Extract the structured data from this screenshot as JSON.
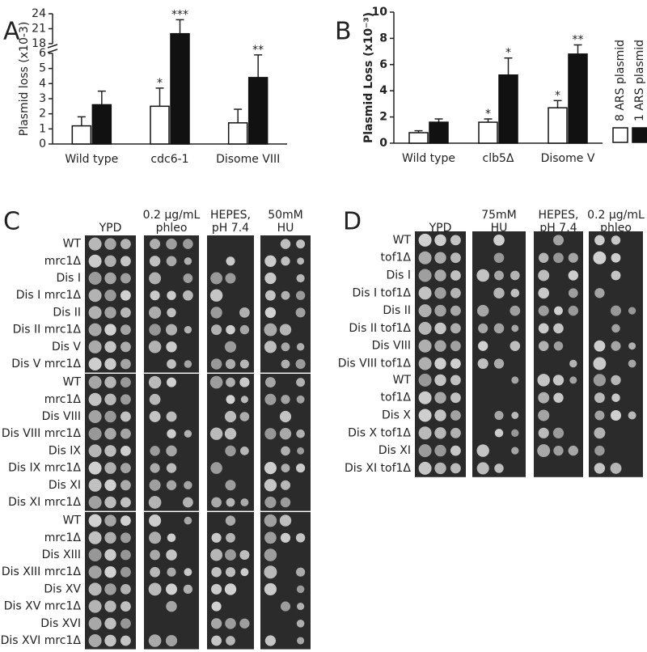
{
  "panel_labels": [
    "A",
    "B",
    "C",
    "D"
  ],
  "chart_data": [
    {
      "type": "bar",
      "y_label": "Plasmid loss (x10-3)",
      "categories": [
        "Wild type",
        "cdc6-1",
        "Disome VIII"
      ],
      "series": [
        {
          "color": "#ffffff",
          "values": [
            1.2,
            2.5,
            1.4
          ],
          "errors": [
            0.6,
            1.2,
            0.9
          ],
          "significance": [
            null,
            "*",
            null
          ]
        },
        {
          "color": "#111111",
          "values": [
            2.6,
            20,
            4.4
          ],
          "errors": [
            0.9,
            2.8,
            1.5
          ],
          "significance": [
            null,
            "***",
            "**"
          ]
        }
      ],
      "ylim": [
        0,
        24
      ],
      "yticks": [
        0,
        1,
        2,
        3,
        4,
        5,
        6,
        18,
        21,
        24
      ],
      "axis_break": [
        6,
        18
      ]
    },
    {
      "type": "bar",
      "y_label": "Plasmid Loss (x10⁻³)",
      "categories": [
        "Wild type",
        "clb5Δ",
        "Disome V"
      ],
      "series": [
        {
          "name": "8 ARS plasmid",
          "color": "#ffffff",
          "values": [
            0.8,
            1.6,
            2.7
          ],
          "errors": [
            0.15,
            0.25,
            0.55
          ],
          "significance": [
            null,
            "*",
            "*"
          ]
        },
        {
          "name": "1 ARS plasmid",
          "color": "#111111",
          "values": [
            1.6,
            5.2,
            6.8
          ],
          "errors": [
            0.25,
            1.3,
            0.7
          ],
          "significance": [
            null,
            "*",
            "**"
          ]
        }
      ],
      "ylim": [
        0,
        10
      ],
      "yticks": [
        0,
        2,
        4,
        6,
        8,
        10
      ],
      "legend": "right"
    }
  ],
  "spot_assays": [
    {
      "columns": [
        {
          "lines": [
            "YPD"
          ]
        },
        {
          "lines": [
            "0.2 µg/mL",
            "phleo"
          ]
        },
        {
          "lines": [
            "HEPES,",
            "pH 7.4"
          ]
        },
        {
          "lines": [
            "50mM",
            "HU"
          ]
        }
      ],
      "groups": [
        [
          "WT",
          "mrc1Δ",
          "Dis I",
          "Dis I mrc1Δ",
          "Dis II",
          "Dis II mrc1Δ",
          "Dis V",
          "Dis V mrc1Δ"
        ],
        [
          "WT",
          "mrc1Δ",
          "Dis VIII",
          "Dis VIII mrc1Δ",
          "Dis IX",
          "Dis IX mrc1Δ",
          "Dis XI",
          "Dis XI mrc1Δ"
        ],
        [
          "WT",
          "mrc1Δ",
          "Dis XIII",
          "Dis XIII mrc1Δ",
          "Dis XV",
          "Dis XV mrc1Δ",
          "Dis XVI",
          "Dis XVI mrc1Δ"
        ]
      ]
    },
    {
      "columns": [
        {
          "lines": [
            "YPD"
          ]
        },
        {
          "lines": [
            "75mM",
            "HU"
          ]
        },
        {
          "lines": [
            "HEPES,",
            "pH 7.4"
          ]
        },
        {
          "lines": [
            "0.2 µg/mL",
            "phleo"
          ]
        }
      ],
      "groups": [
        [
          "WT",
          "tof1Δ",
          "Dis I",
          "Dis I tof1Δ",
          "Dis II",
          "Dis II tof1Δ",
          "Dis VIII",
          "Dis VIII tof1Δ"
        ],
        [
          "WT",
          "tof1Δ",
          "Dis X",
          "Dis X tof1Δ",
          "Dis XI",
          "Dis XI tof1Δ"
        ]
      ]
    }
  ]
}
